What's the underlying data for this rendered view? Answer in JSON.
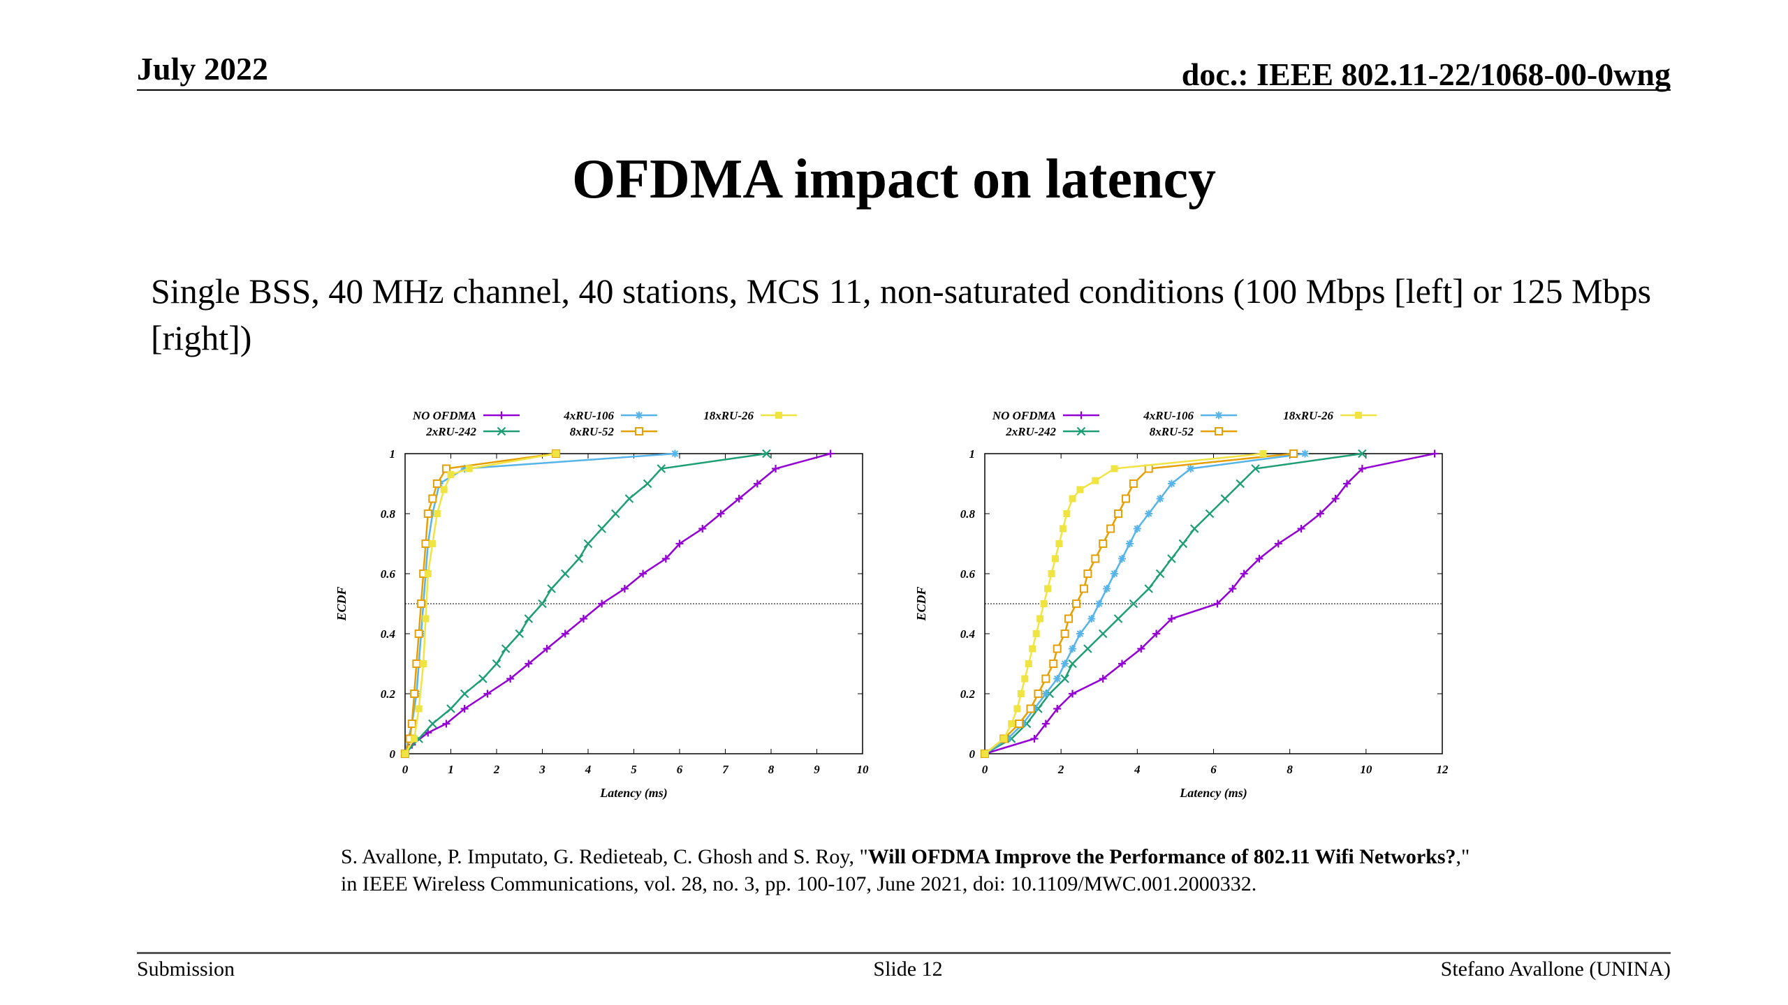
{
  "header": {
    "date": "July 2022",
    "doc": "doc.: IEEE 802.11-22/1068-00-0wng"
  },
  "slide": {
    "title": "OFDMA impact on latency",
    "subtitle": "Single BSS, 40 MHz channel, 40 stations, MCS 11, non-saturated conditions (100 Mbps [left] or 125 Mbps [right])"
  },
  "citation": {
    "pre": "S. Avallone, P. Imputato, G. Redieteab, C. Ghosh and S. Roy, \"",
    "bold": "Will OFDMA Improve the Performance of 802.11 Wifi Networks?",
    "post": ",\" in IEEE Wireless Communications, vol. 28, no. 3, pp. 100-107, June 2021, doi: 10.1109/MWC.001.2000332."
  },
  "footer": {
    "left": "Submission",
    "center": "Slide 12",
    "right": "Stefano Avallone (UNINA)"
  },
  "colors": {
    "no_ofdma": "#9400d3",
    "ru242": "#1d9e74",
    "ru106": "#56b4e9",
    "ru52": "#e69f00",
    "ru26": "#f0e442"
  },
  "chart_data": [
    {
      "type": "line",
      "xlabel": "Latency (ms)",
      "ylabel": "ECDF",
      "xlim": [
        0,
        10
      ],
      "ylim": [
        0,
        1
      ],
      "xticks": [
        "0",
        "1",
        "2",
        "3",
        "4",
        "5",
        "6",
        "7",
        "8",
        "9",
        "10"
      ],
      "yticks": [
        "0",
        "0.2",
        "0.4",
        "0.6",
        "0.8",
        "1"
      ],
      "reference_line_y": 0.5,
      "legend_position": "top",
      "series": [
        {
          "name": "NO OFDMA",
          "color": "#9400d3",
          "marker": "plus",
          "points": [
            [
              0,
              0
            ],
            [
              0.15,
              0.03
            ],
            [
              0.5,
              0.07
            ],
            [
              0.9,
              0.1
            ],
            [
              1.3,
              0.15
            ],
            [
              1.8,
              0.2
            ],
            [
              2.3,
              0.25
            ],
            [
              2.7,
              0.3
            ],
            [
              3.1,
              0.35
            ],
            [
              3.5,
              0.4
            ],
            [
              3.9,
              0.45
            ],
            [
              4.3,
              0.5
            ],
            [
              4.8,
              0.55
            ],
            [
              5.2,
              0.6
            ],
            [
              5.7,
              0.65
            ],
            [
              6.0,
              0.7
            ],
            [
              6.5,
              0.75
            ],
            [
              6.9,
              0.8
            ],
            [
              7.3,
              0.85
            ],
            [
              7.7,
              0.9
            ],
            [
              8.1,
              0.95
            ],
            [
              9.3,
              1.0
            ]
          ]
        },
        {
          "name": "2xRU-242",
          "color": "#1d9e74",
          "marker": "cross",
          "points": [
            [
              0,
              0
            ],
            [
              0.3,
              0.05
            ],
            [
              0.6,
              0.1
            ],
            [
              1.0,
              0.15
            ],
            [
              1.3,
              0.2
            ],
            [
              1.7,
              0.25
            ],
            [
              2.0,
              0.3
            ],
            [
              2.2,
              0.35
            ],
            [
              2.5,
              0.4
            ],
            [
              2.7,
              0.45
            ],
            [
              3.0,
              0.5
            ],
            [
              3.2,
              0.55
            ],
            [
              3.5,
              0.6
            ],
            [
              3.8,
              0.65
            ],
            [
              4.0,
              0.7
            ],
            [
              4.3,
              0.75
            ],
            [
              4.6,
              0.8
            ],
            [
              4.9,
              0.85
            ],
            [
              5.3,
              0.9
            ],
            [
              5.6,
              0.95
            ],
            [
              7.9,
              1.0
            ]
          ]
        },
        {
          "name": "4xRU-106",
          "color": "#56b4e9",
          "marker": "star",
          "points": [
            [
              0,
              0
            ],
            [
              0.15,
              0.1
            ],
            [
              0.25,
              0.2
            ],
            [
              0.3,
              0.3
            ],
            [
              0.35,
              0.4
            ],
            [
              0.4,
              0.5
            ],
            [
              0.45,
              0.6
            ],
            [
              0.5,
              0.7
            ],
            [
              0.6,
              0.8
            ],
            [
              0.75,
              0.9
            ],
            [
              1.3,
              0.95
            ],
            [
              5.9,
              1.0
            ]
          ]
        },
        {
          "name": "8xRU-52",
          "color": "#e69f00",
          "marker": "square",
          "points": [
            [
              0,
              0
            ],
            [
              0.1,
              0.05
            ],
            [
              0.15,
              0.1
            ],
            [
              0.2,
              0.2
            ],
            [
              0.25,
              0.3
            ],
            [
              0.3,
              0.4
            ],
            [
              0.35,
              0.5
            ],
            [
              0.4,
              0.6
            ],
            [
              0.45,
              0.7
            ],
            [
              0.5,
              0.8
            ],
            [
              0.6,
              0.85
            ],
            [
              0.7,
              0.9
            ],
            [
              0.9,
              0.95
            ],
            [
              3.3,
              1.0
            ]
          ]
        },
        {
          "name": "18xRU-26",
          "color": "#f0e442",
          "marker": "filled-square",
          "points": [
            [
              0,
              0
            ],
            [
              0.2,
              0.05
            ],
            [
              0.3,
              0.15
            ],
            [
              0.4,
              0.3
            ],
            [
              0.45,
              0.45
            ],
            [
              0.5,
              0.6
            ],
            [
              0.6,
              0.7
            ],
            [
              0.7,
              0.8
            ],
            [
              0.85,
              0.88
            ],
            [
              1.0,
              0.93
            ],
            [
              1.4,
              0.95
            ],
            [
              3.3,
              1.0
            ]
          ]
        }
      ]
    },
    {
      "type": "line",
      "xlabel": "Latency (ms)",
      "ylabel": "ECDF",
      "xlim": [
        0,
        12
      ],
      "ylim": [
        0,
        1
      ],
      "xticks": [
        "0",
        "2",
        "4",
        "6",
        "8",
        "10",
        "12"
      ],
      "yticks": [
        "0",
        "0.2",
        "0.4",
        "0.6",
        "0.8",
        "1"
      ],
      "reference_line_y": 0.5,
      "legend_position": "top",
      "series": [
        {
          "name": "NO OFDMA",
          "color": "#9400d3",
          "marker": "plus",
          "points": [
            [
              0,
              0
            ],
            [
              1.3,
              0.05
            ],
            [
              1.6,
              0.1
            ],
            [
              1.9,
              0.15
            ],
            [
              2.3,
              0.2
            ],
            [
              3.1,
              0.25
            ],
            [
              3.6,
              0.3
            ],
            [
              4.1,
              0.35
            ],
            [
              4.5,
              0.4
            ],
            [
              4.9,
              0.45
            ],
            [
              6.1,
              0.5
            ],
            [
              6.5,
              0.55
            ],
            [
              6.8,
              0.6
            ],
            [
              7.2,
              0.65
            ],
            [
              7.7,
              0.7
            ],
            [
              8.3,
              0.75
            ],
            [
              8.8,
              0.8
            ],
            [
              9.2,
              0.85
            ],
            [
              9.5,
              0.9
            ],
            [
              9.9,
              0.95
            ],
            [
              11.8,
              1.0
            ]
          ]
        },
        {
          "name": "2xRU-242",
          "color": "#1d9e74",
          "marker": "cross",
          "points": [
            [
              0,
              0
            ],
            [
              0.7,
              0.05
            ],
            [
              1.1,
              0.1
            ],
            [
              1.4,
              0.15
            ],
            [
              1.7,
              0.2
            ],
            [
              2.1,
              0.25
            ],
            [
              2.3,
              0.3
            ],
            [
              2.7,
              0.35
            ],
            [
              3.1,
              0.4
            ],
            [
              3.5,
              0.45
            ],
            [
              3.9,
              0.5
            ],
            [
              4.3,
              0.55
            ],
            [
              4.6,
              0.6
            ],
            [
              4.9,
              0.65
            ],
            [
              5.2,
              0.7
            ],
            [
              5.5,
              0.75
            ],
            [
              5.9,
              0.8
            ],
            [
              6.3,
              0.85
            ],
            [
              6.7,
              0.9
            ],
            [
              7.1,
              0.95
            ],
            [
              9.9,
              1.0
            ]
          ]
        },
        {
          "name": "4xRU-106",
          "color": "#56b4e9",
          "marker": "star",
          "points": [
            [
              0,
              0
            ],
            [
              0.6,
              0.05
            ],
            [
              1.0,
              0.1
            ],
            [
              1.3,
              0.15
            ],
            [
              1.6,
              0.2
            ],
            [
              1.9,
              0.25
            ],
            [
              2.1,
              0.3
            ],
            [
              2.3,
              0.35
            ],
            [
              2.5,
              0.4
            ],
            [
              2.8,
              0.45
            ],
            [
              3.0,
              0.5
            ],
            [
              3.2,
              0.55
            ],
            [
              3.4,
              0.6
            ],
            [
              3.6,
              0.65
            ],
            [
              3.8,
              0.7
            ],
            [
              4.0,
              0.75
            ],
            [
              4.3,
              0.8
            ],
            [
              4.6,
              0.85
            ],
            [
              4.9,
              0.9
            ],
            [
              5.4,
              0.95
            ],
            [
              8.4,
              1.0
            ]
          ]
        },
        {
          "name": "8xRU-52",
          "color": "#e69f00",
          "marker": "square",
          "points": [
            [
              0,
              0
            ],
            [
              0.5,
              0.05
            ],
            [
              0.9,
              0.1
            ],
            [
              1.2,
              0.15
            ],
            [
              1.4,
              0.2
            ],
            [
              1.6,
              0.25
            ],
            [
              1.8,
              0.3
            ],
            [
              1.9,
              0.35
            ],
            [
              2.1,
              0.4
            ],
            [
              2.2,
              0.45
            ],
            [
              2.4,
              0.5
            ],
            [
              2.6,
              0.55
            ],
            [
              2.7,
              0.6
            ],
            [
              2.9,
              0.65
            ],
            [
              3.1,
              0.7
            ],
            [
              3.3,
              0.75
            ],
            [
              3.5,
              0.8
            ],
            [
              3.7,
              0.85
            ],
            [
              3.9,
              0.9
            ],
            [
              4.3,
              0.95
            ],
            [
              8.1,
              1.0
            ]
          ]
        },
        {
          "name": "18xRU-26",
          "color": "#f0e442",
          "marker": "filled-square",
          "points": [
            [
              0,
              0
            ],
            [
              0.5,
              0.05
            ],
            [
              0.7,
              0.1
            ],
            [
              0.85,
              0.15
            ],
            [
              0.95,
              0.2
            ],
            [
              1.05,
              0.25
            ],
            [
              1.15,
              0.3
            ],
            [
              1.25,
              0.35
            ],
            [
              1.35,
              0.4
            ],
            [
              1.45,
              0.45
            ],
            [
              1.55,
              0.5
            ],
            [
              1.65,
              0.55
            ],
            [
              1.75,
              0.6
            ],
            [
              1.85,
              0.65
            ],
            [
              1.95,
              0.7
            ],
            [
              2.05,
              0.75
            ],
            [
              2.15,
              0.8
            ],
            [
              2.3,
              0.85
            ],
            [
              2.5,
              0.88
            ],
            [
              2.9,
              0.91
            ],
            [
              3.4,
              0.95
            ],
            [
              7.3,
              1.0
            ]
          ]
        }
      ]
    }
  ]
}
